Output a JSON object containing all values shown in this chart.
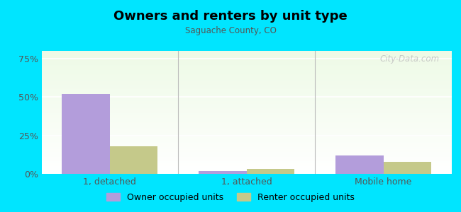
{
  "title": "Owners and renters by unit type",
  "subtitle": "Saguache County, CO",
  "categories": [
    "1, detached",
    "1, attached",
    "Mobile home"
  ],
  "owner_values": [
    52.0,
    2.0,
    12.0
  ],
  "renter_values": [
    18.0,
    3.0,
    8.0
  ],
  "owner_color": "#b39ddb",
  "renter_color": "#c5c98a",
  "background_color": "#00e5ff",
  "yticks": [
    0,
    25,
    50,
    75
  ],
  "ylim": [
    0,
    80
  ],
  "bar_width": 0.35,
  "watermark": "City-Data.com",
  "legend_owner": "Owner occupied units",
  "legend_renter": "Renter occupied units"
}
